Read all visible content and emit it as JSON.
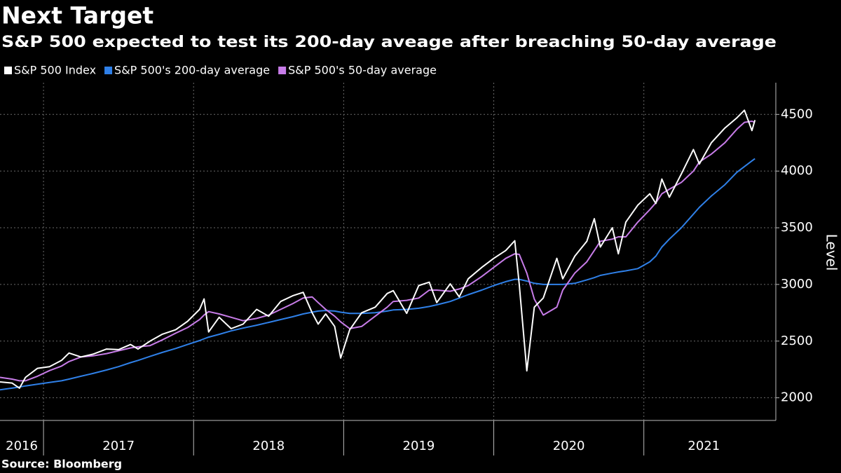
{
  "chart_data": {
    "type": "line",
    "title": "Next Target",
    "subtitle": "S&P 500 expected to test its 200-day aveage after breaching 50-day average",
    "source": "Source: Bloomberg",
    "y_label": "Level",
    "x": [
      2016.71,
      2016.79,
      2016.84,
      2016.88,
      2016.96,
      2017.04,
      2017.12,
      2017.17,
      2017.25,
      2017.33,
      2017.42,
      2017.5,
      2017.58,
      2017.63,
      2017.71,
      2017.79,
      2017.88,
      2017.96,
      2018.04,
      2018.07,
      2018.1,
      2018.17,
      2018.25,
      2018.33,
      2018.42,
      2018.5,
      2018.58,
      2018.66,
      2018.73,
      2018.79,
      2018.83,
      2018.88,
      2018.94,
      2018.98,
      2019.04,
      2019.12,
      2019.21,
      2019.29,
      2019.33,
      2019.42,
      2019.5,
      2019.57,
      2019.62,
      2019.71,
      2019.77,
      2019.83,
      2019.92,
      2020.0,
      2020.08,
      2020.14,
      2020.17,
      2020.22,
      2020.27,
      2020.33,
      2020.42,
      2020.46,
      2020.54,
      2020.62,
      2020.67,
      2020.71,
      2020.79,
      2020.83,
      2020.88,
      2020.96,
      2021.04,
      2021.08,
      2021.12,
      2021.17,
      2021.25,
      2021.33,
      2021.37,
      2021.45,
      2021.54,
      2021.62,
      2021.67,
      2021.72,
      2021.74
    ],
    "series": [
      {
        "name": "S&P 500 Index",
        "color": "#ffffff",
        "values": [
          2140,
          2130,
          2085,
          2180,
          2260,
          2275,
          2330,
          2395,
          2360,
          2385,
          2430,
          2425,
          2470,
          2430,
          2500,
          2560,
          2600,
          2675,
          2780,
          2872,
          2581,
          2710,
          2610,
          2650,
          2780,
          2720,
          2850,
          2900,
          2930,
          2750,
          2650,
          2740,
          2630,
          2351,
          2600,
          2750,
          2800,
          2920,
          2945,
          2745,
          2990,
          3020,
          2840,
          3005,
          2890,
          3050,
          3150,
          3230,
          3300,
          3386,
          3000,
          2237,
          2800,
          2880,
          3230,
          3050,
          3250,
          3380,
          3580,
          3330,
          3500,
          3270,
          3550,
          3700,
          3800,
          3714,
          3930,
          3770,
          3975,
          4190,
          4063,
          4250,
          4380,
          4470,
          4537,
          4358,
          4450
        ]
      },
      {
        "name": "S&P 500's 200-day average",
        "color": "#2f80e8",
        "values": [
          2070,
          2085,
          2095,
          2105,
          2120,
          2135,
          2150,
          2165,
          2190,
          2215,
          2245,
          2275,
          2310,
          2330,
          2365,
          2400,
          2435,
          2470,
          2505,
          2520,
          2535,
          2560,
          2590,
          2615,
          2640,
          2665,
          2690,
          2715,
          2740,
          2755,
          2765,
          2770,
          2765,
          2755,
          2745,
          2745,
          2750,
          2765,
          2775,
          2780,
          2790,
          2805,
          2820,
          2850,
          2880,
          2910,
          2950,
          2990,
          3025,
          3045,
          3045,
          3030,
          3010,
          3000,
          3000,
          3000,
          3010,
          3040,
          3060,
          3080,
          3100,
          3110,
          3120,
          3140,
          3200,
          3250,
          3330,
          3400,
          3500,
          3620,
          3680,
          3780,
          3880,
          3990,
          4040,
          4090,
          4110
        ]
      },
      {
        "name": "S&P 500's 50-day average",
        "color": "#c77ce8",
        "values": [
          2180,
          2165,
          2150,
          2150,
          2190,
          2240,
          2280,
          2320,
          2360,
          2370,
          2390,
          2415,
          2440,
          2450,
          2460,
          2510,
          2570,
          2620,
          2690,
          2730,
          2760,
          2740,
          2710,
          2680,
          2700,
          2730,
          2780,
          2830,
          2880,
          2890,
          2840,
          2780,
          2720,
          2670,
          2610,
          2630,
          2720,
          2800,
          2850,
          2860,
          2880,
          2950,
          2950,
          2940,
          2960,
          2990,
          3070,
          3150,
          3230,
          3270,
          3265,
          3100,
          2870,
          2730,
          2800,
          2950,
          3100,
          3200,
          3300,
          3380,
          3400,
          3420,
          3420,
          3550,
          3660,
          3720,
          3800,
          3840,
          3900,
          4000,
          4080,
          4150,
          4250,
          4370,
          4430,
          4440,
          4430
        ]
      }
    ],
    "xlim": [
      2016.71,
      2021.8
    ],
    "xticks": [
      2016,
      2017,
      2018,
      2019,
      2020,
      2021
    ],
    "ylim": [
      1800,
      4780
    ],
    "yticks": [
      2000,
      2500,
      3000,
      3500,
      4000,
      4500
    ],
    "grid": true
  }
}
